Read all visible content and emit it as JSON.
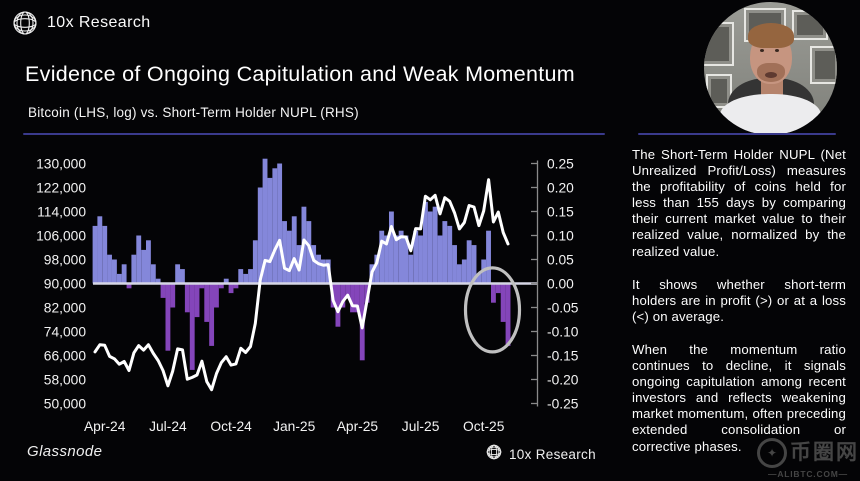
{
  "header": {
    "brand": "10x Research",
    "title": "Evidence of Ongoing Capitulation and Weak Momentum",
    "subtitle": "Bitcoin (LHS, log) vs. Short-Term Holder NUPL (RHS)"
  },
  "footer": {
    "source": "Glassnode",
    "brand": "10x Research"
  },
  "panel": {
    "paragraphs": [
      "The Short-Term Holder NUPL (Net Unrealized Profit/Loss) measures the profitability of coins held for less than 155 days by comparing their current market value to their realized value, normalized by the realized value.",
      "It shows whether short-term holders are in profit (>) or at a loss (<) on average.",
      "When the momentum ratio continues to decline, it signals ongoing capitulation among recent investors and reflects weakening market momentum, often preceding extended consolidation or corrective phases."
    ]
  },
  "watermark": {
    "site": "币圈网",
    "domain": "—ALIBTC.COM—",
    "logo_glyph": "✦"
  },
  "colors": {
    "background": "#040406",
    "separator": "#3a3a8c",
    "bar_positive": "#8487da",
    "bar_negative": "#8445ba",
    "price_line": "#ffffff",
    "zero_line": "#d6d6e6",
    "axis": "#8a8a8a",
    "annotation": "#c0c0c0"
  },
  "chart_data": {
    "type": "bar",
    "title": "Bitcoin (LHS, log) vs. Short-Term Holder NUPL (RHS)",
    "x_ticks": {
      "labels": [
        "Apr-24",
        "Jul-24",
        "Oct-24",
        "Jan-25",
        "Apr-25",
        "Jul-25",
        "Oct-25"
      ],
      "week_index": [
        2,
        15,
        28,
        41,
        54,
        67,
        80
      ]
    },
    "left_axis": {
      "label": "Bitcoin price, USD (LHS, log)",
      "tick_labels": [
        "130,000",
        "122,000",
        "114,000",
        "106,000",
        "98,000",
        "90,000",
        "82,000",
        "74,000",
        "66,000",
        "58,000",
        "50,000"
      ],
      "range": [
        130000,
        50000
      ],
      "scale_label": "log"
    },
    "right_axis": {
      "label": "Short-Term Holder NUPL (RHS)",
      "tick_labels": [
        "0.25",
        "0.20",
        "0.15",
        "0.10",
        "0.05",
        "0.00",
        "-0.05",
        "-0.10",
        "-0.15",
        "-0.20",
        "-0.25"
      ],
      "range": [
        0.25,
        -0.25
      ]
    },
    "grid": false,
    "legend": "none",
    "weeks": [
      "2024-03-18",
      "2024-03-25",
      "2024-04-01",
      "2024-04-08",
      "2024-04-15",
      "2024-04-22",
      "2024-04-29",
      "2024-05-06",
      "2024-05-13",
      "2024-05-20",
      "2024-05-27",
      "2024-06-03",
      "2024-06-10",
      "2024-06-17",
      "2024-06-24",
      "2024-07-01",
      "2024-07-08",
      "2024-07-15",
      "2024-07-22",
      "2024-07-29",
      "2024-08-05",
      "2024-08-12",
      "2024-08-19",
      "2024-08-26",
      "2024-09-02",
      "2024-09-09",
      "2024-09-16",
      "2024-09-23",
      "2024-09-30",
      "2024-10-07",
      "2024-10-14",
      "2024-10-21",
      "2024-10-28",
      "2024-11-04",
      "2024-11-11",
      "2024-11-18",
      "2024-11-25",
      "2024-12-02",
      "2024-12-09",
      "2024-12-16",
      "2024-12-23",
      "2024-12-30",
      "2025-01-06",
      "2025-01-13",
      "2025-01-20",
      "2025-01-27",
      "2025-02-03",
      "2025-02-10",
      "2025-02-17",
      "2025-02-24",
      "2025-03-03",
      "2025-03-10",
      "2025-03-17",
      "2025-03-24",
      "2025-03-31",
      "2025-04-07",
      "2025-04-14",
      "2025-04-21",
      "2025-04-28",
      "2025-05-05",
      "2025-05-12",
      "2025-05-19",
      "2025-05-26",
      "2025-06-02",
      "2025-06-09",
      "2025-06-16",
      "2025-06-23",
      "2025-06-30",
      "2025-07-07",
      "2025-07-14",
      "2025-07-21",
      "2025-07-28",
      "2025-08-04",
      "2025-08-11",
      "2025-08-18",
      "2025-08-25",
      "2025-09-01",
      "2025-09-08",
      "2025-09-15",
      "2025-09-22",
      "2025-09-29",
      "2025-10-06",
      "2025-10-13",
      "2025-10-20",
      "2025-10-27",
      "2025-11-03"
    ],
    "series": [
      {
        "name": "Short-Term Holder NUPL (RHS)",
        "type": "bar",
        "axis": "right",
        "color_positive": "#8487da",
        "color_negative": "#8445ba",
        "values": [
          0.12,
          0.14,
          0.12,
          0.06,
          0.05,
          0.02,
          0.04,
          -0.01,
          0.06,
          0.1,
          0.07,
          0.09,
          0.04,
          0.01,
          -0.03,
          -0.14,
          -0.05,
          0.04,
          0.03,
          -0.06,
          -0.18,
          -0.07,
          -0.01,
          -0.08,
          -0.13,
          -0.05,
          -0.01,
          0.01,
          -0.02,
          -0.01,
          0.03,
          0.02,
          0.03,
          0.09,
          0.2,
          0.26,
          0.22,
          0.24,
          0.25,
          0.13,
          0.11,
          0.14,
          0.08,
          0.16,
          0.13,
          0.08,
          0.06,
          0.05,
          0.05,
          -0.05,
          -0.09,
          -0.05,
          -0.03,
          -0.06,
          -0.06,
          -0.16,
          -0.04,
          0.04,
          0.06,
          0.11,
          0.1,
          0.15,
          0.1,
          0.11,
          0.1,
          0.06,
          0.11,
          0.1,
          0.17,
          0.15,
          0.16,
          0.1,
          0.13,
          0.12,
          0.08,
          0.04,
          0.05,
          0.09,
          0.08,
          0.02,
          0.05,
          0.11,
          -0.04,
          -0.02,
          -0.08,
          -0.13
        ]
      },
      {
        "name": "Bitcoin (LHS, log)",
        "type": "line",
        "axis": "left",
        "color": "#ffffff",
        "values": [
          67200,
          69600,
          69400,
          65700,
          64900,
          63100,
          64000,
          61000,
          66900,
          69300,
          67800,
          69600,
          66700,
          64300,
          61000,
          55900,
          60800,
          68200,
          67900,
          58100,
          58700,
          59500,
          64100,
          57300,
          54600,
          60000,
          63600,
          65600,
          62800,
          63200,
          68400,
          67000,
          69000,
          76700,
          91100,
          97700,
          97300,
          101200,
          104400,
          95100,
          94300,
          98300,
          94500,
          104500,
          102600,
          97700,
          96600,
          96100,
          96300,
          84400,
          80600,
          84000,
          86100,
          82600,
          82500,
          75200,
          84500,
          93800,
          96900,
          104100,
          103200,
          109000,
          104600,
          105600,
          105500,
          100900,
          108300,
          108200,
          119100,
          117900,
          119400,
          113200,
          118600,
          117400,
          113500,
          108200,
          110300,
          116000,
          115500,
          109300,
          114200,
          124600,
          110500,
          113800,
          107000,
          103200
        ]
      }
    ],
    "zero_line": 0.0,
    "annotation_ellipse": {
      "week_index": 81.8,
      "value_center": -0.055,
      "note": "grey ellipse circling the latest negative NUPL dip (ongoing capitulation)"
    }
  }
}
